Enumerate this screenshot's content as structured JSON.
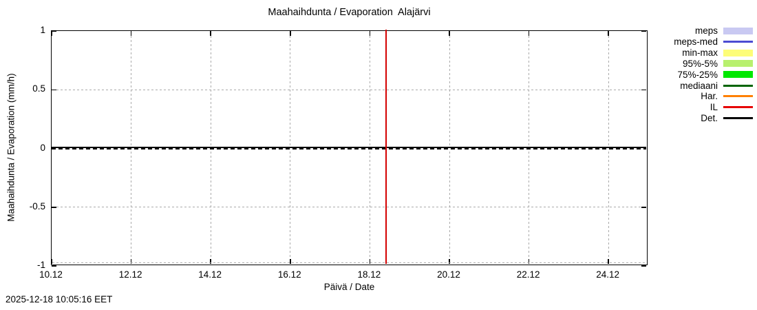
{
  "chart_data": {
    "type": "line",
    "title": "Maahaihdunta / Evaporation  Alajärvi",
    "xlabel": "Päivä / Date",
    "ylabel": "Maahaihdunta / Evaporation (mm/h)",
    "timestamp_label": "2025-12-18 10:05:16 EET",
    "x_range_days": [
      10,
      25
    ],
    "ylim": [
      -1,
      1
    ],
    "xticks": [
      {
        "day": 10,
        "label": "10.12"
      },
      {
        "day": 12,
        "label": "12.12"
      },
      {
        "day": 14,
        "label": "14.12"
      },
      {
        "day": 16,
        "label": "16.12"
      },
      {
        "day": 18,
        "label": "18.12"
      },
      {
        "day": 20,
        "label": "20.12"
      },
      {
        "day": 22,
        "label": "22.12"
      },
      {
        "day": 24,
        "label": "24.12"
      }
    ],
    "yticks": [
      {
        "value": 1,
        "label": "1"
      },
      {
        "value": 0.5,
        "label": "0.5"
      },
      {
        "value": 0,
        "label": "0"
      },
      {
        "value": -0.5,
        "label": "-0.5"
      },
      {
        "value": -1,
        "label": "-1"
      }
    ],
    "grid": true,
    "grid_color": "#a9a9a9",
    "legend_position": "outside-top-right",
    "legend": [
      {
        "label": "meps",
        "type": "box",
        "color": "#c9c9f2"
      },
      {
        "label": "meps-med",
        "type": "line",
        "color": "#4b4bd2"
      },
      {
        "label": "min-max",
        "type": "box",
        "color": "#fdfd78"
      },
      {
        "label": "95%-5%",
        "type": "box",
        "color": "#b8f06e"
      },
      {
        "label": "75%-25%",
        "type": "box",
        "color": "#00e800"
      },
      {
        "label": "mediaani",
        "type": "line",
        "color": "#006400"
      },
      {
        "label": "Har.",
        "type": "line",
        "color": "#ff8000"
      },
      {
        "label": "IL",
        "type": "line",
        "color": "#e60000"
      },
      {
        "label": "Det.",
        "type": "line",
        "color": "#000000"
      }
    ],
    "series": [
      {
        "name": "Det.",
        "color": "#000000",
        "x_days": [
          10,
          25
        ],
        "values": [
          0,
          0
        ]
      }
    ],
    "now_line": {
      "x_day": 18.4,
      "color": "#d40000"
    }
  }
}
